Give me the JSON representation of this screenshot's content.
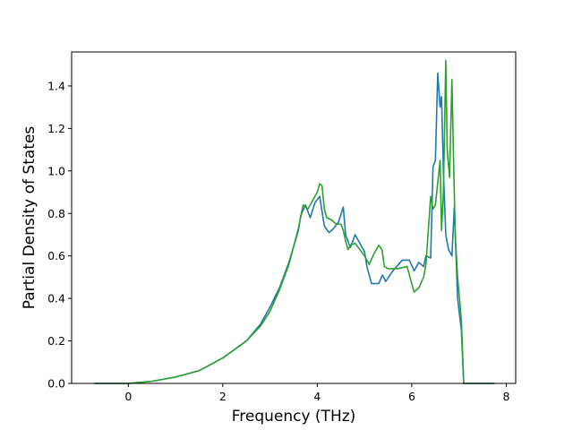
{
  "chart_data": {
    "type": "line",
    "title": "",
    "xlabel": "Frequency (THz)",
    "ylabel": "Partial Density of States",
    "xlim": [
      -1.2,
      8.2
    ],
    "ylim": [
      0,
      1.56
    ],
    "xticks": [
      0,
      2,
      4,
      6,
      8
    ],
    "xtick_labels": [
      "0",
      "2",
      "4",
      "6",
      "8"
    ],
    "yticks": [
      0.0,
      0.2,
      0.4,
      0.6,
      0.8,
      1.0,
      1.2,
      1.4
    ],
    "ytick_labels": [
      "0.0",
      "0.2",
      "0.4",
      "0.6",
      "0.8",
      "1.0",
      "1.2",
      "1.4"
    ],
    "grid": false,
    "legend": "none",
    "series": [
      {
        "color": "#1f77b4",
        "x": [
          -0.72,
          0.0,
          0.5,
          1.0,
          1.5,
          2.0,
          2.5,
          2.8,
          3.0,
          3.2,
          3.4,
          3.6,
          3.65,
          3.75,
          3.85,
          3.95,
          4.05,
          4.15,
          4.25,
          4.35,
          4.45,
          4.55,
          4.6,
          4.7,
          4.8,
          4.9,
          5.0,
          5.05,
          5.15,
          5.3,
          5.38,
          5.45,
          5.6,
          5.8,
          5.95,
          6.05,
          6.15,
          6.25,
          6.3,
          6.4,
          6.45,
          6.5,
          6.55,
          6.6,
          6.63,
          6.67,
          6.72,
          6.78,
          6.85,
          6.9,
          6.97,
          7.05,
          7.1,
          7.75
        ],
        "y": [
          0.0,
          0.0,
          0.01,
          0.03,
          0.06,
          0.12,
          0.2,
          0.28,
          0.36,
          0.45,
          0.57,
          0.72,
          0.79,
          0.84,
          0.78,
          0.85,
          0.88,
          0.74,
          0.71,
          0.73,
          0.76,
          0.83,
          0.7,
          0.64,
          0.7,
          0.66,
          0.62,
          0.55,
          0.47,
          0.47,
          0.51,
          0.48,
          0.53,
          0.58,
          0.58,
          0.53,
          0.57,
          0.55,
          0.6,
          0.59,
          1.02,
          1.05,
          1.46,
          1.3,
          1.35,
          1.0,
          0.7,
          0.63,
          0.6,
          0.83,
          0.4,
          0.25,
          0.0,
          0.0
        ]
      },
      {
        "color": "#2ca02c",
        "x": [
          -0.72,
          0.0,
          0.5,
          1.0,
          1.5,
          2.0,
          2.5,
          2.8,
          3.0,
          3.2,
          3.4,
          3.6,
          3.7,
          3.8,
          3.9,
          4.0,
          4.05,
          4.1,
          4.15,
          4.2,
          4.3,
          4.4,
          4.5,
          4.55,
          4.6,
          4.65,
          4.7,
          4.8,
          4.9,
          5.0,
          5.1,
          5.2,
          5.3,
          5.37,
          5.42,
          5.5,
          5.7,
          5.9,
          6.0,
          6.05,
          6.15,
          6.25,
          6.3,
          6.4,
          6.45,
          6.5,
          6.6,
          6.63,
          6.67,
          6.72,
          6.75,
          6.8,
          6.85,
          6.88,
          6.92,
          6.97,
          7.05,
          7.1,
          7.75
        ],
        "y": [
          0.0,
          0.0,
          0.01,
          0.03,
          0.06,
          0.12,
          0.2,
          0.27,
          0.34,
          0.44,
          0.56,
          0.73,
          0.84,
          0.82,
          0.86,
          0.9,
          0.94,
          0.93,
          0.82,
          0.78,
          0.77,
          0.75,
          0.75,
          0.72,
          0.67,
          0.63,
          0.65,
          0.66,
          0.63,
          0.6,
          0.56,
          0.61,
          0.65,
          0.63,
          0.55,
          0.54,
          0.54,
          0.55,
          0.47,
          0.43,
          0.45,
          0.5,
          0.56,
          0.88,
          0.82,
          0.84,
          1.05,
          0.72,
          0.9,
          1.52,
          1.1,
          0.97,
          1.43,
          1.1,
          0.7,
          0.5,
          0.3,
          0.0,
          0.0
        ]
      }
    ]
  }
}
